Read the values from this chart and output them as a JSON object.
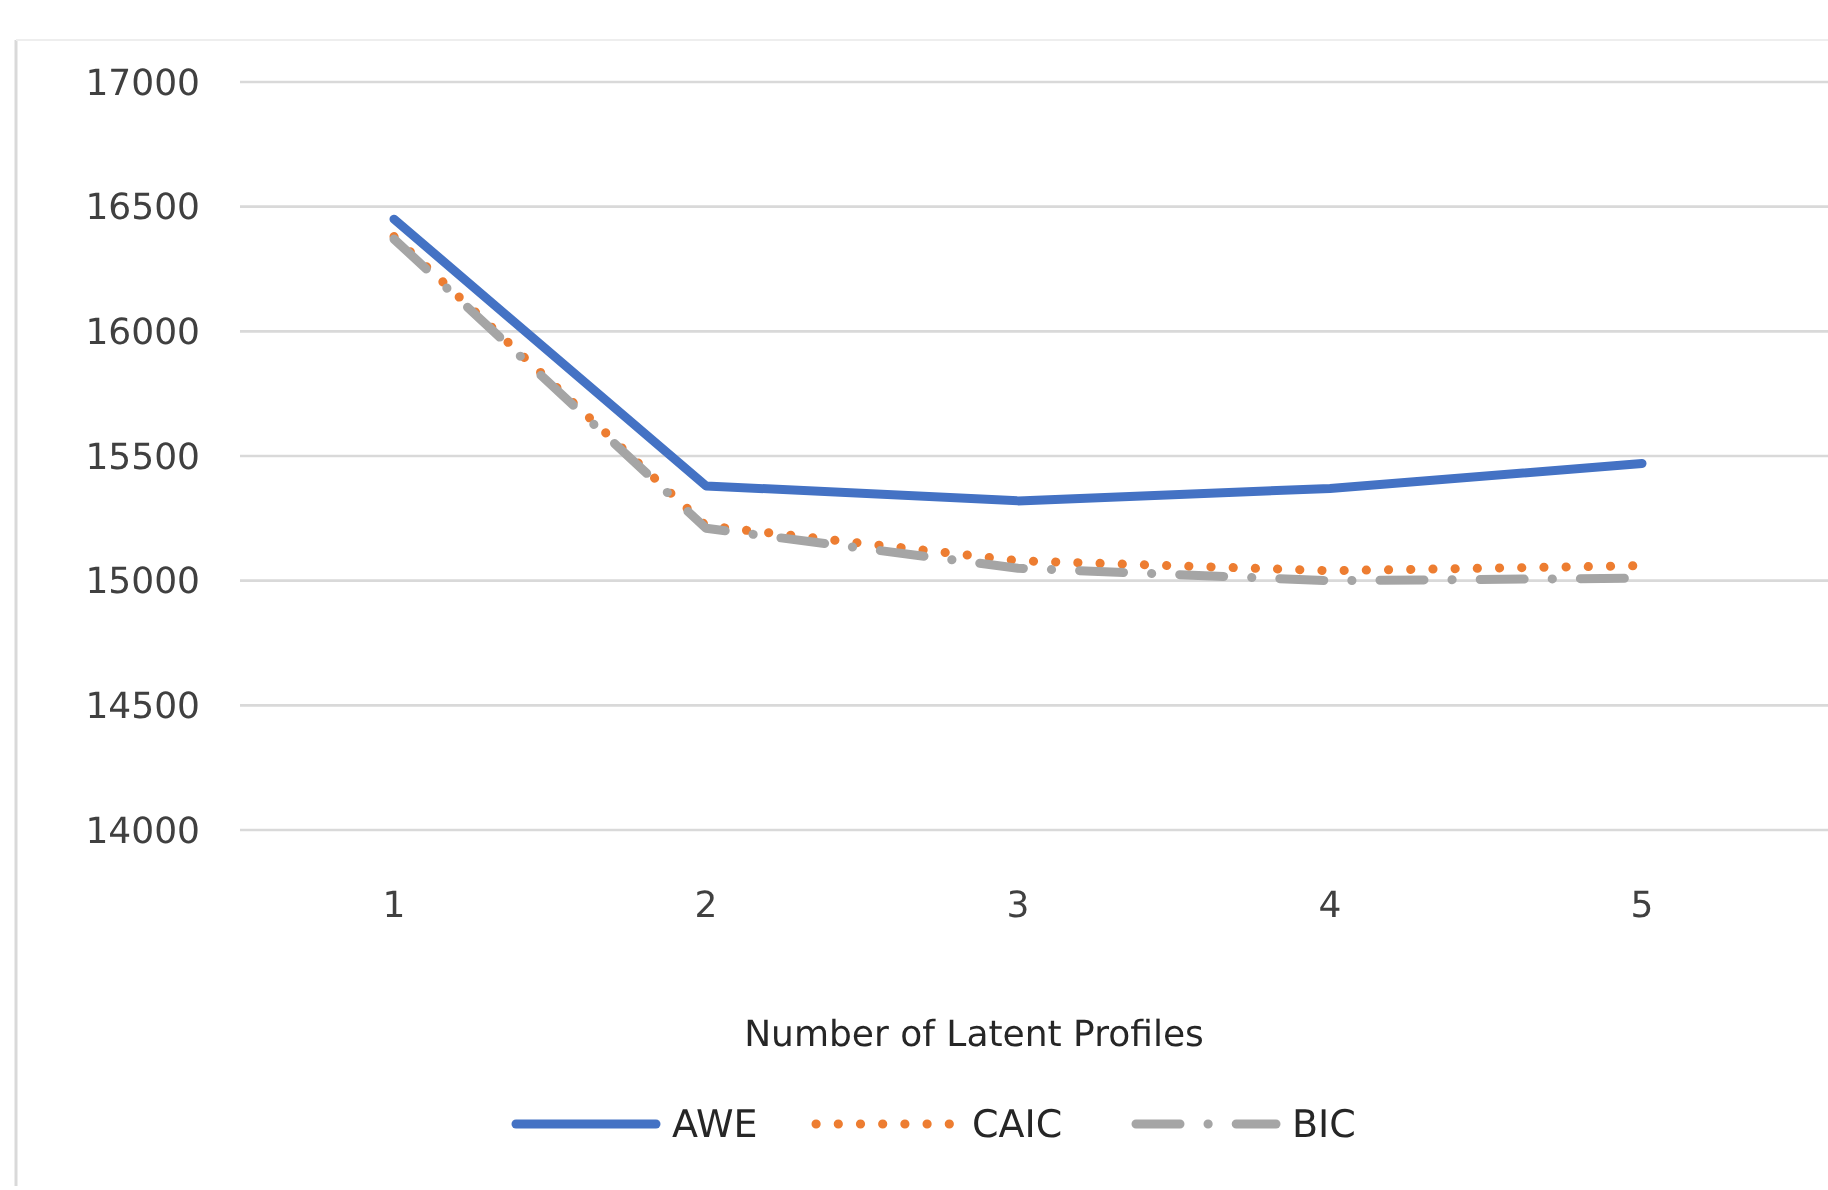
{
  "chart_data": {
    "type": "line",
    "xlabel": "Number of Latent Profiles",
    "categories": [
      "1",
      "2",
      "3",
      "4",
      "5"
    ],
    "ylim": [
      14000,
      17000
    ],
    "yticks": [
      14000,
      14500,
      15000,
      15500,
      16000,
      16500,
      17000
    ],
    "grid": "y",
    "legend": "bottom",
    "marker": "none",
    "series": [
      {
        "name": "AWE",
        "color": "#4472c4",
        "line_style": "solid",
        "values": [
          16450,
          15380,
          15320,
          15370,
          15470
        ]
      },
      {
        "name": "CAIC",
        "color": "#ed7d31",
        "line_style": "dotted",
        "values": [
          16380,
          15220,
          15080,
          15040,
          15060
        ]
      },
      {
        "name": "BIC",
        "color": "#a5a5a5",
        "line_style": "dashed",
        "values": [
          16370,
          15210,
          15050,
          15000,
          15010
        ]
      }
    ]
  }
}
